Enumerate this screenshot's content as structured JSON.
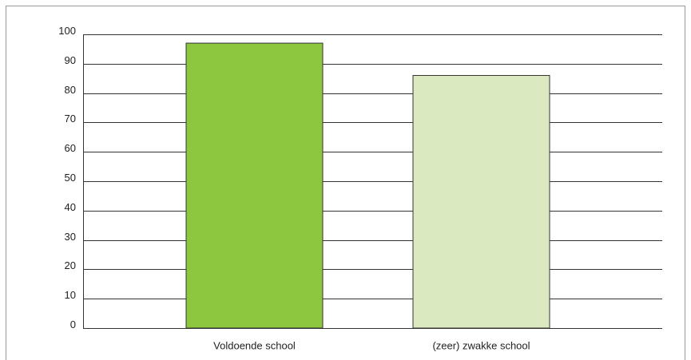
{
  "chart_data": {
    "type": "bar",
    "categories": [
      "Voldoende school",
      "(zeer) zwakke school"
    ],
    "values": [
      97,
      86
    ],
    "colors": [
      "#8dc63f",
      "#dbe9c0"
    ],
    "ylim": [
      0,
      100
    ],
    "yticks": [
      0,
      10,
      20,
      30,
      40,
      50,
      60,
      70,
      80,
      90,
      100
    ],
    "grid": true
  }
}
